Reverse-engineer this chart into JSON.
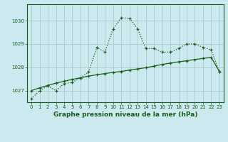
{
  "title": "Graphe pression niveau de la mer (hPa)",
  "background_color": "#cce9f0",
  "grid_color": "#aacccc",
  "line_color": "#1a5c1a",
  "xlim": [
    -0.5,
    23.5
  ],
  "ylim": [
    1026.5,
    1030.7
  ],
  "yticks": [
    1027,
    1028,
    1029,
    1030
  ],
  "xticks": [
    0,
    1,
    2,
    3,
    4,
    5,
    6,
    7,
    8,
    9,
    10,
    11,
    12,
    13,
    14,
    15,
    16,
    17,
    18,
    19,
    20,
    21,
    22,
    23
  ],
  "series1_x": [
    0,
    1,
    2,
    3,
    4,
    5,
    6,
    7,
    8,
    9,
    10,
    11,
    12,
    13,
    14,
    15,
    16,
    17,
    18,
    19,
    20,
    21,
    22,
    23
  ],
  "series1_y": [
    1026.65,
    1027.0,
    1027.2,
    1027.0,
    1027.3,
    1027.35,
    1027.55,
    1027.8,
    1028.85,
    1028.65,
    1029.65,
    1030.12,
    1030.1,
    1029.65,
    1028.8,
    1028.8,
    1028.65,
    1028.65,
    1028.8,
    1029.0,
    1029.0,
    1028.85,
    1028.75,
    1027.8
  ],
  "series2_x": [
    0,
    1,
    2,
    3,
    4,
    5,
    6,
    7,
    8,
    9,
    10,
    11,
    12,
    13,
    14,
    15,
    16,
    17,
    18,
    19,
    20,
    21,
    22,
    23
  ],
  "series2_y": [
    1027.0,
    1027.12,
    1027.22,
    1027.32,
    1027.4,
    1027.48,
    1027.55,
    1027.62,
    1027.68,
    1027.73,
    1027.78,
    1027.82,
    1027.88,
    1027.93,
    1027.98,
    1028.05,
    1028.12,
    1028.18,
    1028.23,
    1028.28,
    1028.33,
    1028.38,
    1028.42,
    1027.82
  ],
  "figsize": [
    3.2,
    2.0
  ],
  "dpi": 100,
  "title_fontsize": 6.5,
  "tick_fontsize": 5
}
